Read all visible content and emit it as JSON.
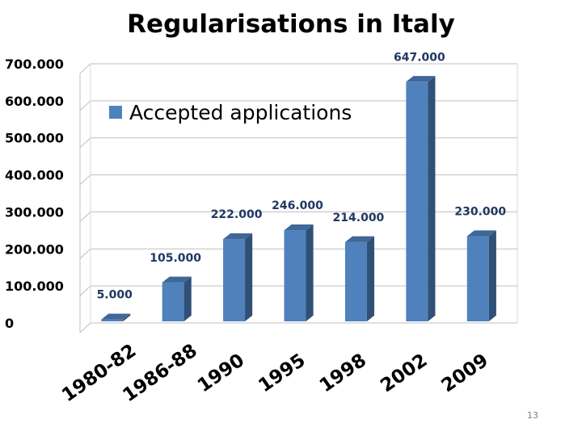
{
  "slide": {
    "title": "Regularisations in Italy",
    "page_number": "13"
  },
  "chart_data": {
    "type": "bar",
    "title": "Regularisations in Italy",
    "categories": [
      "1980-82",
      "1986-88",
      "1990",
      "1995",
      "1998",
      "2002",
      "2009"
    ],
    "series": [
      {
        "name": "Accepted applications",
        "values": [
          5000,
          105000,
          222000,
          246000,
          214000,
          647000,
          230000
        ],
        "data_labels": [
          "5.000",
          "105.000",
          "222.000",
          "246.000",
          "214.000",
          "647.000",
          "230.000"
        ],
        "color": "#4f81bd"
      }
    ],
    "ylim": [
      0,
      700000
    ],
    "yticks": [
      0,
      100000,
      200000,
      300000,
      400000,
      500000,
      600000,
      700000
    ],
    "ytick_labels": [
      "0",
      "100.000",
      "200.000",
      "300.000",
      "400.000",
      "500.000",
      "600.000",
      "700.000"
    ],
    "xlabel": "",
    "ylabel": "",
    "grid": true,
    "legend": "top-left",
    "style": "3d-bar"
  }
}
